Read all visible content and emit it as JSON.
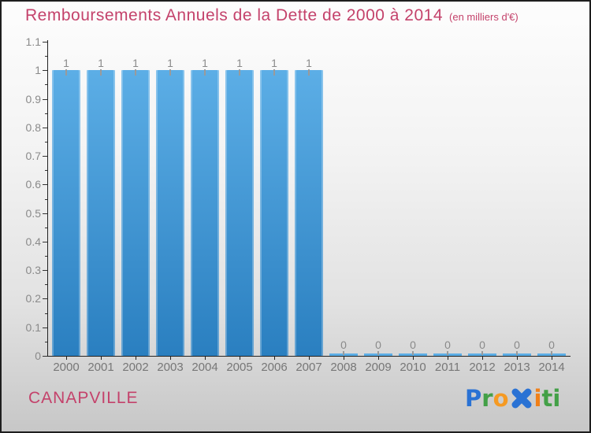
{
  "header": {
    "title": "Remboursements Annuels de la Dette de 2000 à 2014",
    "subtitle": "(en milliers d'€)",
    "color": "#c4426b"
  },
  "footer": {
    "commune": "CANAPVILLE",
    "commune_color": "#c4426b",
    "logo": {
      "name": "Proxiti",
      "letters": [
        {
          "ch": "P",
          "color": "#2a72d4"
        },
        {
          "ch": "r",
          "color": "#43a047"
        },
        {
          "ch": "o",
          "color": "#f59a23"
        },
        {
          "ch": "x",
          "color": "#2a72d4",
          "big": true
        },
        {
          "ch": "i",
          "color": "#f08019"
        },
        {
          "ch": "t",
          "color": "#43a047"
        },
        {
          "ch": "i",
          "color": "#43a047"
        }
      ]
    }
  },
  "chart_data": {
    "type": "bar",
    "title": "Remboursements Annuels de la Dette de 2000 à 2014",
    "unit_label": "(en milliers d'€)",
    "categories": [
      "2000",
      "2001",
      "2002",
      "2003",
      "2004",
      "2005",
      "2006",
      "2007",
      "2008",
      "2009",
      "2010",
      "2011",
      "2012",
      "2013",
      "2014"
    ],
    "values": [
      1,
      1,
      1,
      1,
      1,
      1,
      1,
      1,
      0,
      0,
      0,
      0,
      0,
      0,
      0
    ],
    "xlabel": "",
    "ylabel": "",
    "ylim": [
      0,
      1.1
    ],
    "ytick_major_step": 0.1,
    "ytick_minor_step": 0.05,
    "grid": false,
    "legend": "none",
    "bar_color_top": "#5caee6",
    "bar_color_bottom": "#2a7fc0",
    "value_label_color": "#8a8a8a",
    "tick_label_color": "#8a8a8a",
    "axis_color": "#222222"
  }
}
